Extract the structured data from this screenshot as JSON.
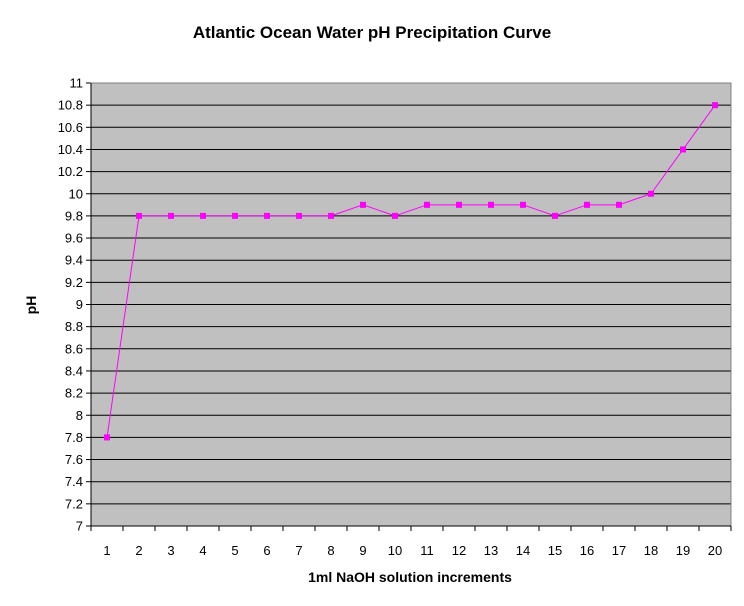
{
  "chart_data": {
    "type": "line",
    "title": "Atlantic Ocean Water pH Precipitation Curve",
    "xlabel": "1ml NaOH solution increments",
    "ylabel": "pH",
    "categories": [
      "1",
      "2",
      "3",
      "4",
      "5",
      "6",
      "7",
      "8",
      "9",
      "10",
      "11",
      "12",
      "13",
      "14",
      "15",
      "16",
      "17",
      "18",
      "19",
      "20"
    ],
    "series": [
      {
        "values": [
          7.8,
          9.8,
          9.8,
          9.8,
          9.8,
          9.8,
          9.8,
          9.8,
          9.9,
          9.8,
          9.9,
          9.9,
          9.9,
          9.9,
          9.8,
          9.9,
          9.9,
          10.0,
          10.4,
          10.8
        ]
      }
    ],
    "ylim": [
      7,
      11
    ],
    "yticks": [
      "7",
      "7.2",
      "7.4",
      "7.6",
      "7.8",
      "8",
      "8.2",
      "8.4",
      "8.6",
      "8.8",
      "9",
      "9.2",
      "9.4",
      "9.6",
      "9.8",
      "10",
      "10.2",
      "10.4",
      "10.6",
      "10.8",
      "11"
    ],
    "grid": true,
    "legend": "none",
    "colors": {
      "plot_background": "#C0C0C0",
      "gridline": "#000000",
      "line": "#FF00FF",
      "marker": "#FF00FF"
    }
  }
}
